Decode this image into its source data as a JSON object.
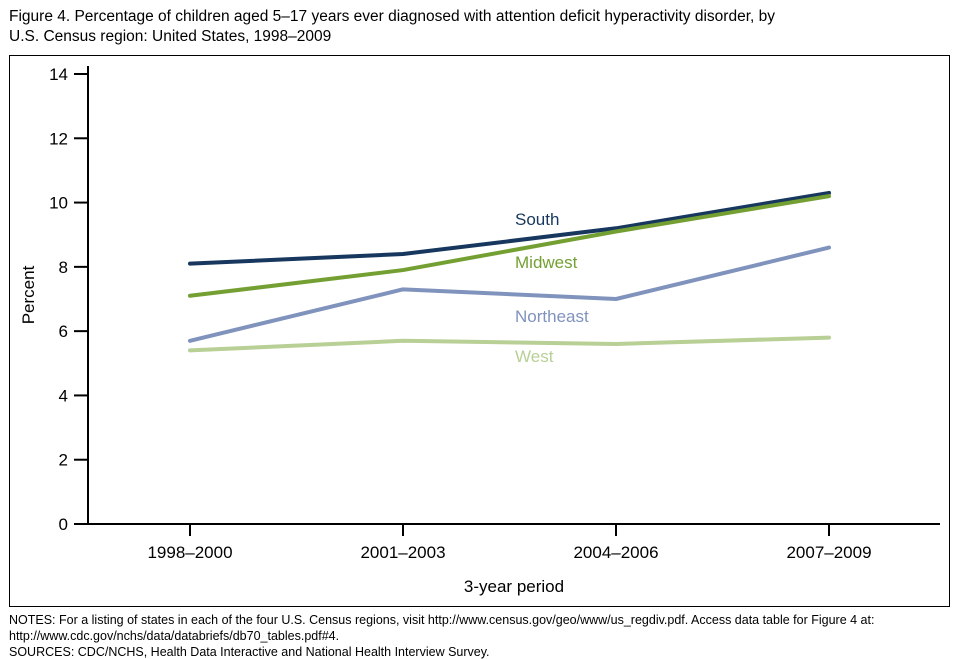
{
  "title": {
    "line1": "Figure 4. Percentage of children aged 5–17 years ever diagnosed with attention deficit hyperactivity disorder, by",
    "line2": "U.S. Census region: United States, 1998–2009"
  },
  "chart_data": {
    "type": "line",
    "title": "Percentage of children aged 5–17 years ever diagnosed with attention deficit hyperactivity disorder, by U.S. Census region: United States, 1998–2009",
    "xlabel": "3-year period",
    "ylabel": "Percent",
    "categories": [
      "1998–2000",
      "2001–2003",
      "2004–2006",
      "2007–2009"
    ],
    "y_ticks": [
      0,
      2,
      4,
      6,
      8,
      10,
      12,
      14
    ],
    "ylim": [
      0,
      14
    ],
    "grid": false,
    "legend_position": "inline-labels",
    "series": [
      {
        "name": "South",
        "color": "#17375e",
        "values": [
          8.1,
          8.4,
          9.2,
          10.3
        ]
      },
      {
        "name": "Midwest",
        "color": "#74a033",
        "values": [
          7.1,
          7.9,
          9.1,
          10.2
        ]
      },
      {
        "name": "Northeast",
        "color": "#8093bd",
        "values": [
          5.7,
          7.3,
          7.0,
          8.6
        ]
      },
      {
        "name": "West",
        "color": "#b8cf96",
        "values": [
          5.4,
          5.7,
          5.6,
          5.8
        ]
      }
    ]
  },
  "notes": {
    "notes_text": "NOTES: For a listing of states in each of the four U.S. Census regions, visit http://www.census.gov/geo/www/us_regdiv.pdf. Access data table for Figure 4 at: http://www.cdc.gov/nchs/data/databriefs/db70_tables.pdf#4.",
    "sources_text": "SOURCES: CDC/NCHS, Health Data Interactive and National Health Interview Survey."
  }
}
